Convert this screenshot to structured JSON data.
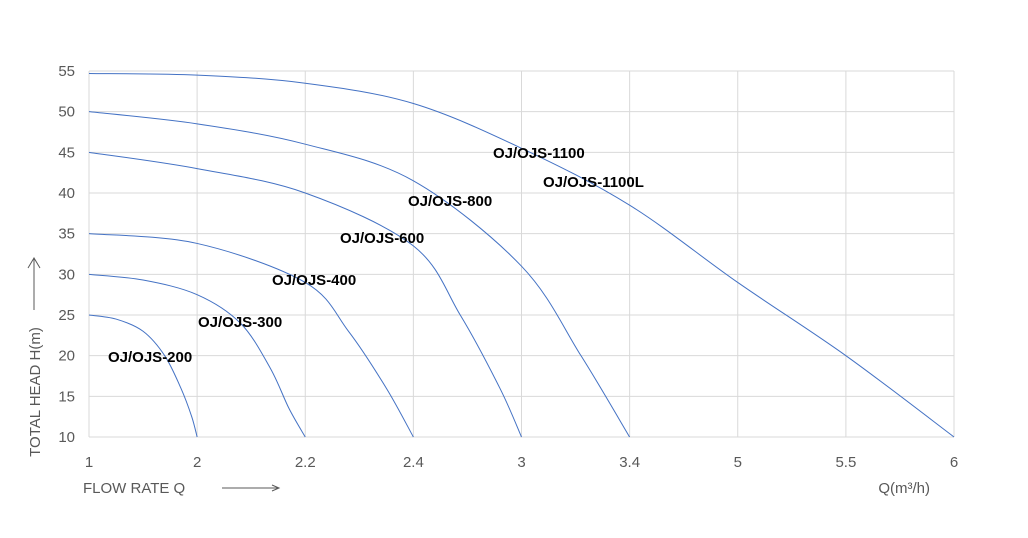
{
  "chart_data": {
    "type": "line",
    "x_label": "FLOW RATE Q",
    "y_label": "TOTAL HEAD H(m)",
    "x_unit_label": "Q(m³/h)",
    "xlim": [
      1,
      6
    ],
    "xticks": [
      1,
      2,
      2.2,
      2.4,
      3,
      3.4,
      5,
      5.5,
      6
    ],
    "ylim": [
      10,
      55
    ],
    "yticks": [
      10,
      15,
      20,
      25,
      30,
      35,
      40,
      45,
      50,
      55
    ],
    "grid": true,
    "series": [
      {
        "name": "OJ/OJS-200",
        "color": "#4472c4",
        "x": [
          1,
          1.25,
          1.5,
          1.7,
          1.85,
          1.95,
          2
        ],
        "values": [
          25,
          24.5,
          23,
          20,
          16,
          12.5,
          10
        ]
      },
      {
        "name": "OJ/OJS-300",
        "color": "#4472c4",
        "x": [
          1,
          1.5,
          2,
          2.08,
          2.135,
          2.17,
          2.2
        ],
        "values": [
          30,
          29.3,
          27.5,
          24,
          18.5,
          13.5,
          10
        ]
      },
      {
        "name": "OJ/OJS-400",
        "color": "#4472c4",
        "x": [
          1,
          2,
          2.2,
          2.28,
          2.35,
          2.4
        ],
        "values": [
          35,
          33.8,
          29,
          23,
          16,
          10
        ]
      },
      {
        "name": "OJ/OJS-600",
        "color": "#4472c4",
        "x": [
          1,
          2,
          2.2,
          2.4,
          2.66,
          2.88,
          3
        ],
        "values": [
          45,
          43,
          40,
          33.5,
          25,
          16,
          10
        ]
      },
      {
        "name": "OJ/OJS-800",
        "color": "#4472c4",
        "x": [
          1,
          2,
          2.2,
          2.4,
          3,
          3.22,
          3.4
        ],
        "values": [
          50,
          48.5,
          46,
          41.5,
          31,
          20,
          10
        ]
      },
      {
        "name": "OJ/OJS-1100",
        "color": "#4472c4",
        "x": [
          1,
          2,
          2.2,
          2.4,
          3,
          3.4,
          5,
          5.5,
          6
        ],
        "values": [
          54.7,
          54.5,
          53.5,
          51,
          45.5,
          38.5,
          29,
          20,
          10
        ]
      }
    ],
    "annotations": [
      "OJ/OJS-1100L"
    ]
  }
}
